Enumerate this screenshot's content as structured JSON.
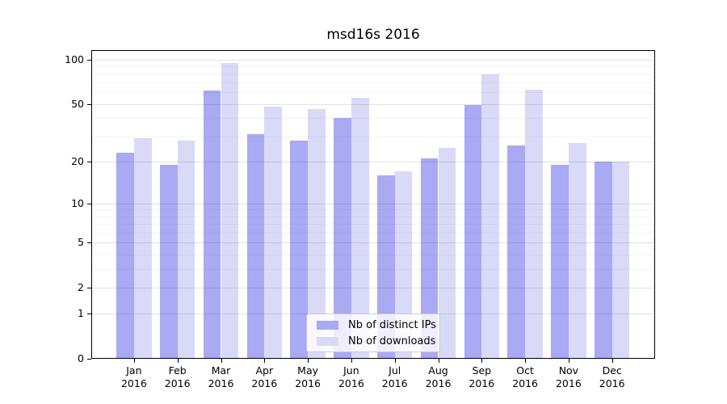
{
  "chart_data": {
    "type": "bar",
    "title": "msd16s 2016",
    "categories": [
      "Jan",
      "Feb",
      "Mar",
      "Apr",
      "May",
      "Jun",
      "Jul",
      "Aug",
      "Sep",
      "Oct",
      "Nov",
      "Dec"
    ],
    "category_year": "2016",
    "series": [
      {
        "name": "Nb of distinct IPs",
        "color": "#a9a9f4",
        "values": [
          23,
          19,
          62,
          31,
          28,
          40,
          16,
          21,
          49,
          26,
          19,
          20
        ]
      },
      {
        "name": "Nb of downloads",
        "color": "#d9d9f8",
        "values": [
          29,
          28,
          95,
          48,
          46,
          55,
          17,
          25,
          80,
          63,
          27,
          20
        ]
      }
    ],
    "xlabel": "",
    "ylabel": "",
    "y_axis": {
      "scale": "log10(1+y)",
      "major_ticks": [
        0,
        1,
        2,
        5,
        10,
        20,
        50,
        100
      ],
      "minor_gridlines": [
        3,
        4,
        6,
        7,
        8,
        9,
        30,
        40,
        60,
        70,
        80,
        90
      ],
      "ylim": [
        0,
        116
      ]
    },
    "grid": true,
    "legend_position": "lower center"
  },
  "colors": {
    "background": "#ffffff",
    "spine": "#000000",
    "text": "#000000",
    "bar_distinct_ips": "#a9a9f4",
    "bar_downloads": "#d9d9f8",
    "legend_border": "#cccccc",
    "legend_background": "rgba(255,255,255,0.8)"
  }
}
